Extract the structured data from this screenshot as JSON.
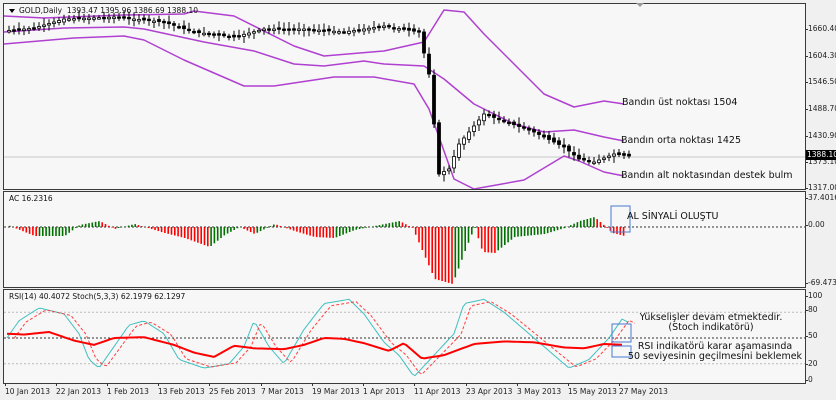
{
  "main": {
    "title": "GOLD,Daily",
    "ohlc": "1393.47 1395.96 1386.69 1388.10",
    "current_price": "1388.10",
    "price_axis": [
      "1660.40",
      "1604.30",
      "1546.50",
      "1488.70",
      "1430.90",
      "1373.10",
      "1317.00"
    ],
    "annotations": {
      "upper": "Bandın üst noktası 1504",
      "middle": "Bandın orta noktası 1425",
      "lower": "Bandın alt noktasından destek bulm"
    }
  },
  "ac": {
    "title": "AC 16.2316",
    "axis": [
      "37.4016",
      "0.00",
      "-69.4731"
    ],
    "annotation": "AL SİNYALİ OLUŞTU"
  },
  "rsi": {
    "title": "RSI(14) 40.4072  Stoch(5,3,3) 62.1979 62.1297",
    "axis": [
      "100",
      "80",
      "50",
      "20",
      "0"
    ],
    "annotation_stoch_line1": "Yükselişler devam etmektedir.",
    "annotation_stoch_line2": "(Stoch indikatörü)",
    "annotation_rsi_line1": "RSI indikatörü karar aşamasında",
    "annotation_rsi_line2": "50 seviyesinin geçilmesini beklemek"
  },
  "time_axis": [
    "10 Jan 2013",
    "22 Jan 2013",
    "1 Feb 2013",
    "13 Feb 2013",
    "25 Feb 2013",
    "7 Mar 2013",
    "19 Mar 2013",
    "1 Apr 2013",
    "11 Apr 2013",
    "23 Apr 2013",
    "3 May 2013",
    "15 May 2013",
    "27 May 2013"
  ],
  "colors": {
    "bands": "#b040d0",
    "ac_up": "#007000",
    "ac_down": "#ff0000",
    "rsi": "#ff0000",
    "stoch_main": "#40c0c0",
    "stoch_signal": "#ff4040",
    "annot_box": "#4a78d0"
  },
  "chart_data": [
    {
      "type": "candlestick",
      "title": "GOLD,Daily",
      "ylim": [
        1317.0,
        1690.0
      ],
      "x": [
        "10 Jan 2013",
        "22 Jan 2013",
        "1 Feb 2013",
        "13 Feb 2013",
        "25 Feb 2013",
        "7 Mar 2013",
        "19 Mar 2013",
        "1 Apr 2013",
        "11 Apr 2013",
        "23 Apr 2013",
        "3 May 2013",
        "15 May 2013",
        "27 May 2013"
      ],
      "approx_close": [
        1662,
        1688,
        1665,
        1640,
        1595,
        1580,
        1605,
        1600,
        1560,
        1425,
        1465,
        1390,
        1388
      ],
      "bollinger": {
        "upper_last": 1504,
        "middle_last": 1425,
        "lower_last": 1380
      }
    },
    {
      "type": "bar",
      "title": "AC 16.2316",
      "ylim": [
        -69.4731,
        37.4016
      ],
      "last_value": 16.2316
    },
    {
      "type": "line",
      "title": "RSI(14) / Stoch(5,3,3)",
      "ylim": [
        0,
        100
      ],
      "levels": [
        20,
        50,
        80
      ],
      "series": [
        {
          "name": "RSI(14)",
          "last": 40.4072
        },
        {
          "name": "Stoch main",
          "last": 62.1979
        },
        {
          "name": "Stoch signal",
          "last": 62.1297
        }
      ]
    }
  ]
}
